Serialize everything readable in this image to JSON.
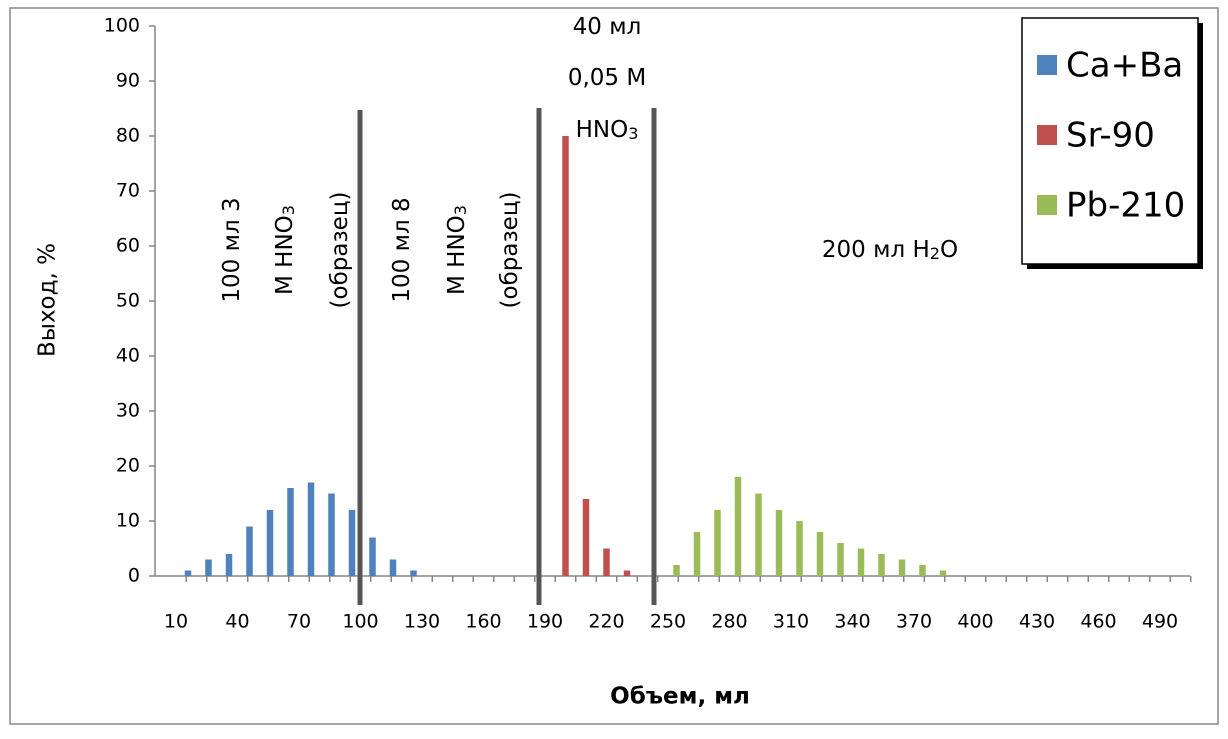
{
  "chart_data": {
    "type": "bar",
    "x_axis_label": "Объем, мл",
    "y_axis_label": "Выход, %",
    "categories": [
      "10",
      null,
      null,
      "40",
      null,
      null,
      "70",
      null,
      null,
      "100",
      null,
      null,
      "130",
      null,
      null,
      "160",
      null,
      null,
      "190",
      null,
      null,
      "220",
      null,
      null,
      "250",
      null,
      null,
      "280",
      null,
      null,
      "310",
      null,
      null,
      "340",
      null,
      null,
      "370",
      null,
      null,
      "400",
      null,
      null,
      "430",
      null,
      null,
      "460",
      null,
      null,
      "490",
      null
    ],
    "series": [
      {
        "name": "Ca+Ba",
        "color": "#4f81bd",
        "values": [
          null,
          1,
          3,
          4,
          9,
          12,
          16,
          17,
          15,
          12,
          7,
          3,
          1,
          null,
          null,
          null,
          null,
          null,
          null,
          null,
          null,
          null,
          null,
          null,
          null,
          null,
          null,
          null,
          null,
          null,
          null,
          null,
          null,
          null,
          null,
          null,
          null,
          null,
          null,
          null,
          null,
          null,
          null,
          null,
          null,
          null,
          null,
          null,
          null,
          null
        ]
      },
      {
        "name": "Sr-90",
        "color": "#c0504d",
        "values": [
          null,
          null,
          null,
          null,
          null,
          null,
          null,
          null,
          null,
          null,
          null,
          null,
          null,
          null,
          null,
          null,
          null,
          null,
          null,
          80,
          14,
          5,
          1,
          null,
          null,
          null,
          null,
          null,
          null,
          null,
          null,
          null,
          null,
          null,
          null,
          null,
          null,
          null,
          null,
          null,
          null,
          null,
          null,
          null,
          null,
          null,
          null,
          null,
          null,
          null
        ]
      },
      {
        "name": "Pb-210",
        "color": "#9bbb59",
        "values": [
          null,
          null,
          null,
          null,
          null,
          null,
          null,
          null,
          null,
          null,
          null,
          null,
          null,
          null,
          null,
          null,
          null,
          null,
          null,
          null,
          null,
          null,
          null,
          null,
          2,
          8,
          12,
          18,
          15,
          12,
          10,
          8,
          6,
          5,
          4,
          3,
          2,
          1,
          null,
          null,
          null,
          null,
          null,
          null,
          null,
          null,
          null,
          null,
          null,
          null
        ]
      }
    ],
    "ylim": [
      0,
      100
    ],
    "yticks": [
      0,
      10,
      20,
      30,
      40,
      50,
      60,
      70,
      80,
      90,
      100
    ],
    "grid": false,
    "legend": "top-right",
    "annotations": [
      {
        "lines": [
          [
            "100 мл 3"
          ],
          [
            "M HNO",
            "3"
          ],
          [
            "(образец)"
          ]
        ]
      },
      {
        "lines": [
          [
            "100 мл 8"
          ],
          [
            "M HNO",
            "3"
          ],
          [
            "(образец)"
          ]
        ]
      },
      {
        "lines": [
          [
            "40 мл"
          ],
          [
            "0,05 M"
          ],
          [
            "HNO",
            "3"
          ]
        ]
      },
      {
        "lines": [
          [
            "200 мл H",
            "2",
            "O"
          ]
        ]
      }
    ]
  }
}
